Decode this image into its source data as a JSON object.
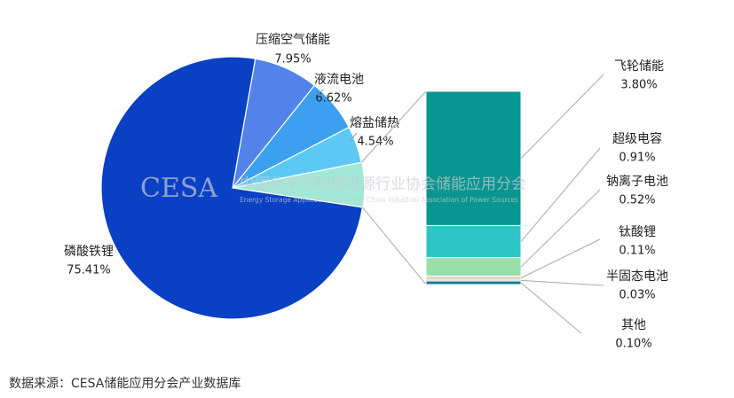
{
  "chart_data": {
    "type": "bar-of-pie",
    "categories": [
      "压缩空气储能",
      "液流电池",
      "熔盐储热",
      "磷酸铁锂"
    ],
    "values": [
      7.95,
      6.62,
      4.54,
      75.41
    ],
    "value_labels": [
      "7.95%",
      "6.62%",
      "4.54%",
      "75.41%"
    ],
    "colors": [
      "#5383ea",
      "#3d9ff0",
      "#5cc9f4",
      "#0a40c4"
    ],
    "bar": {
      "categories": [
        "飞轮储能",
        "超级电容",
        "钠离子电池",
        "钛酸锂",
        "半固态电池",
        "其他"
      ],
      "values": [
        3.8,
        0.91,
        0.52,
        0.11,
        0.03,
        0.1
      ],
      "value_labels": [
        "3.80%",
        "0.91%",
        "0.52%",
        "0.11%",
        "0.03%",
        "0.10%"
      ],
      "colors": [
        "#0a9690",
        "#2ec6c4",
        "#98dea8",
        "#e2d6c6",
        "#c9c9c9",
        "#137e8e"
      ]
    },
    "other_slice_color": "#a2e8d6",
    "watermark": "CESA",
    "watermark_cn": "中国化学与物理电源行业协会储能应用分会",
    "watermark_en": "Energy Storage Application Branch of China Industrial Association of Power Sources",
    "source": "数据来源：CESA储能应用分会产业数据库"
  }
}
